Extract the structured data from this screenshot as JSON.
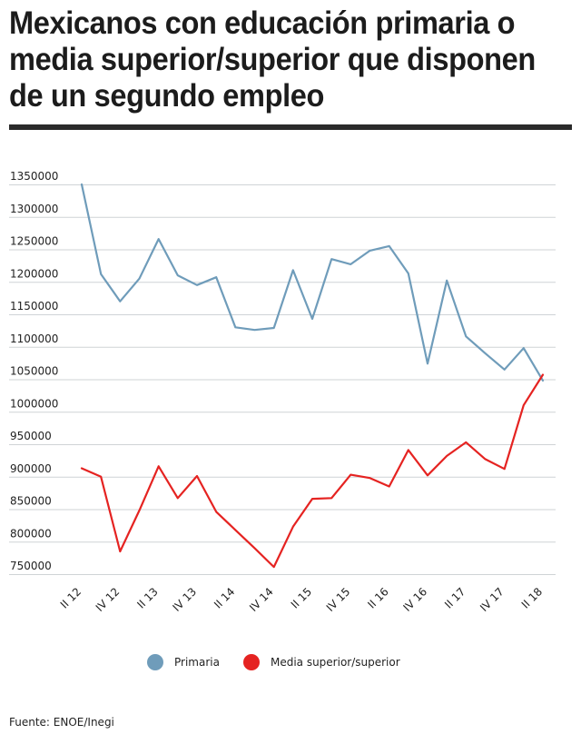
{
  "title_lines": [
    "Mexicanos con educación primaria o",
    "media superior/superior que disponen",
    "de un segundo empleo"
  ],
  "source": "Fuente: ENOE/Inegi",
  "chart_data": {
    "type": "line",
    "title": "Mexicanos con educación primaria o media superior/superior que disponen de un segundo empleo",
    "ylim": [
      750000,
      1350000
    ],
    "yticks": [
      1350000,
      1300000,
      1250000,
      1200000,
      1150000,
      1100000,
      1050000,
      1000000,
      950000,
      900000,
      850000,
      800000,
      750000
    ],
    "x": [
      "II 12",
      "III 12",
      "IV 12",
      "I 13",
      "II 13",
      "III 13",
      "IV 13",
      "I 14",
      "II 14",
      "III 14",
      "IV 14",
      "I 15",
      "II 15",
      "III 15",
      "IV 15",
      "I 16",
      "II 16",
      "III 16",
      "IV 16",
      "I 17",
      "II 17",
      "III 17",
      "IV 17",
      "I 18",
      "II 18"
    ],
    "xtick_labels": [
      "II 12",
      "IV 12",
      "II 13",
      "IV 13",
      "II 14",
      "IV 14",
      "II 15",
      "IV 15",
      "II 16",
      "IV 16",
      "II 17",
      "IV 17",
      "II 18"
    ],
    "legend_position": "bottom",
    "grid": true,
    "series": [
      {
        "name": "Primaria",
        "color": "#6f9cba",
        "values": [
          1350000,
          1212000,
          1170000,
          1205000,
          1266000,
          1210000,
          1195000,
          1207000,
          1130000,
          1126000,
          1129000,
          1218000,
          1143000,
          1235000,
          1227000,
          1248000,
          1255000,
          1213000,
          1074000,
          1202000,
          1116000,
          1090000,
          1065000,
          1098000,
          1048000
        ]
      },
      {
        "name": "Media superior/superior",
        "color": "#e52321",
        "values": [
          913000,
          900000,
          785000,
          848000,
          916000,
          867000,
          901000,
          846000,
          818000,
          790000,
          761000,
          823000,
          866000,
          867000,
          903000,
          898000,
          885000,
          941000,
          902000,
          932000,
          953000,
          927000,
          912000,
          1010000,
          1057000
        ]
      }
    ]
  }
}
